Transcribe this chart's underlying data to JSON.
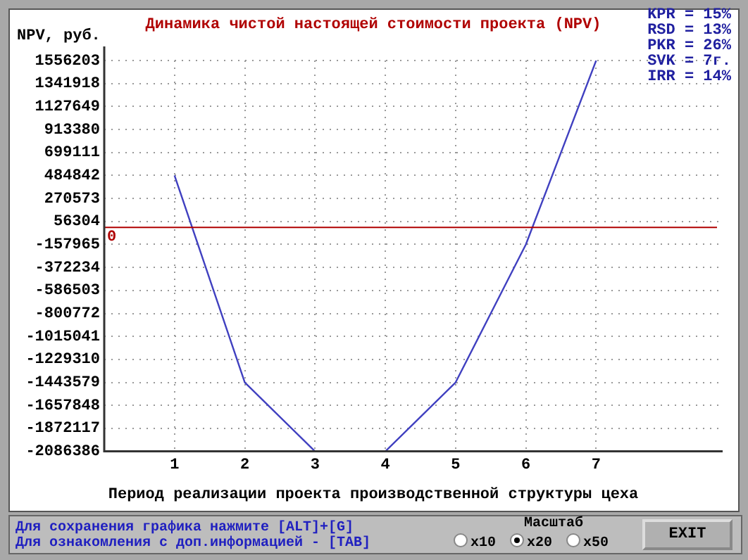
{
  "chart_data": {
    "type": "line",
    "title": "Динамика чистой настоящей стоимости проекта (NPV)",
    "ylabel": "NPV, руб.",
    "xlabel": "Период реализации проекта производственной структуры цеха",
    "x": [
      1,
      2,
      3,
      4,
      5,
      6,
      7
    ],
    "series": [
      {
        "color": "#4040c0",
        "values": [
          484842,
          -1443579,
          -2086386,
          -2086386,
          -1443579,
          -157965,
          1556203
        ]
      }
    ],
    "xlim": [
      0,
      8.8
    ],
    "xticks": [
      1,
      2,
      3,
      4,
      5,
      6,
      7
    ],
    "ylim": [
      -2086386,
      1556203
    ],
    "yticks": [
      1556203,
      1341918,
      1127649,
      913380,
      699111,
      484842,
      270573,
      56304,
      -157965,
      -372234,
      -586503,
      -800772,
      -1015041,
      -1229310,
      -1443579,
      -1657848,
      -1872117,
      -2086386
    ],
    "ref_lines": [
      {
        "axis": "y",
        "value": 0,
        "label": "0",
        "color": "#b00000"
      }
    ],
    "grid": true,
    "legend": false,
    "marker": "none",
    "line_style": "solid",
    "annotations": [
      "KPR = 15%",
      "RSD = 13%",
      "PKR = 26%",
      "SVK = 7г.",
      "IRR = 14%",
      "Для сохранения графика нажмите [ALT]+[G]",
      "Для ознакомления с доп.информацией - [TAB]",
      "Масштаб",
      "x10",
      "x20",
      "x50",
      "EXIT"
    ]
  }
}
